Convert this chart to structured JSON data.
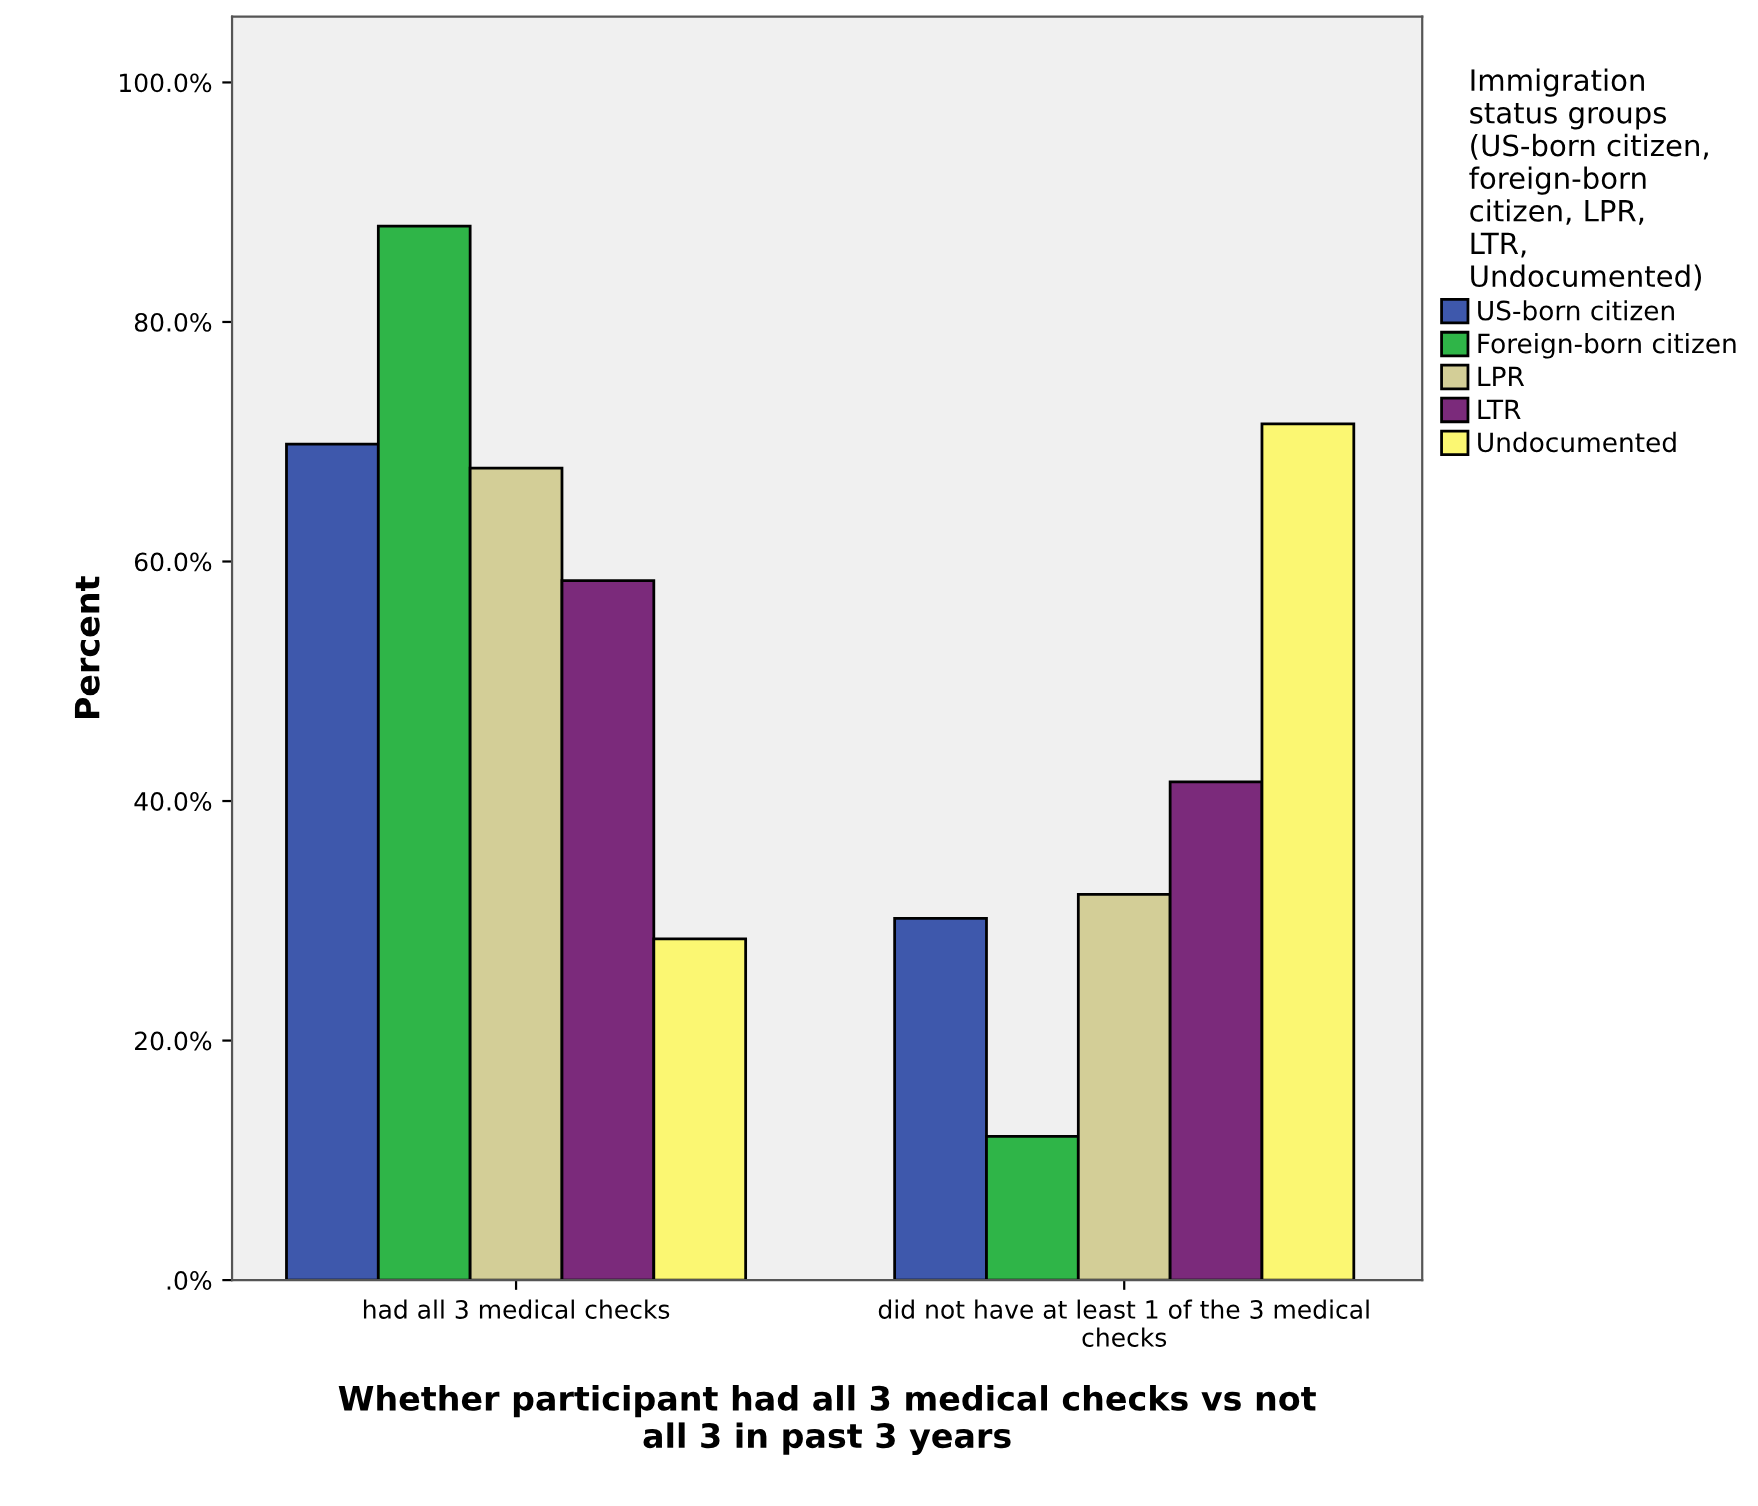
{
  "chart_data": {
    "type": "bar",
    "xlabel": "Whether participant had all 3 medical checks vs not\nall 3 in past 3 years",
    "ylabel": "Percent",
    "legend_title": "Immigration\nstatus groups\n(US-born citizen,\nforeign-born\ncitizen, LPR,\nLTR,\nUndocumented)",
    "categories": [
      "had all 3 medical checks",
      "did not have at least 1 of the 3 medical\nchecks"
    ],
    "series": [
      {
        "name": "US-born citizen",
        "color": "#3e58ac",
        "values": [
          69.8,
          30.2
        ]
      },
      {
        "name": "Foreign-born citizen",
        "color": "#2fb548",
        "values": [
          88.0,
          12.0
        ]
      },
      {
        "name": "LPR",
        "color": "#d3ce97",
        "values": [
          67.8,
          32.2
        ]
      },
      {
        "name": "LTR",
        "color": "#7b2a7b",
        "values": [
          58.4,
          41.6
        ]
      },
      {
        "name": "Undocumented",
        "color": "#fbf772",
        "values": [
          28.5,
          71.5
        ]
      }
    ],
    "ylim": [
      0,
      105.5
    ],
    "yticks": [
      {
        "value": 0,
        "label": ".0%"
      },
      {
        "value": 20,
        "label": "20.0%"
      },
      {
        "value": 40,
        "label": "40.0%"
      },
      {
        "value": 60,
        "label": "60.0%"
      },
      {
        "value": 80,
        "label": "80.0%"
      },
      {
        "value": 100,
        "label": "100.0%"
      }
    ],
    "grid": false,
    "legend": "right"
  }
}
